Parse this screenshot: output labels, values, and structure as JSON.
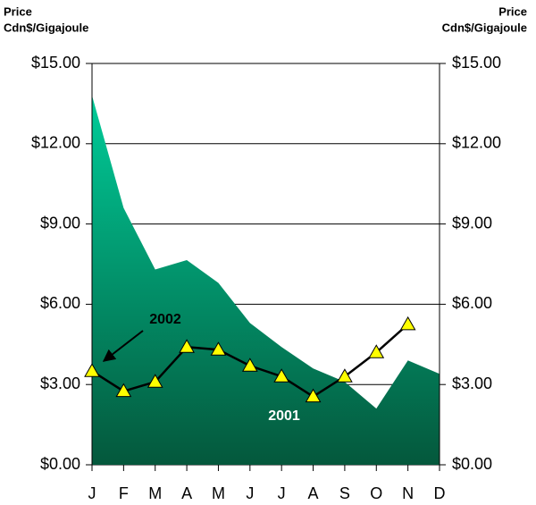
{
  "chart_data": {
    "type": "area_line",
    "ylabel": [
      "Price",
      "Cdn$/Gigajoule"
    ],
    "y2label": [
      "Price",
      "Cdn$/Gigajoule"
    ],
    "categories": [
      "J",
      "F",
      "M",
      "A",
      "M",
      "J",
      "J",
      "A",
      "S",
      "O",
      "N",
      "D"
    ],
    "series": [
      {
        "name": "2001",
        "type": "area",
        "color": "#00a878",
        "values": [
          13.8,
          9.6,
          7.3,
          7.65,
          6.8,
          5.3,
          4.4,
          3.6,
          3.1,
          2.1,
          3.9,
          3.4
        ]
      },
      {
        "name": "2002",
        "type": "line",
        "color": "#000000",
        "marker_color": "#ffff00",
        "axis": "y2",
        "values": [
          3.5,
          2.75,
          3.1,
          4.4,
          4.3,
          3.7,
          3.3,
          2.55,
          3.3,
          4.2,
          5.25,
          null
        ]
      }
    ],
    "ylim": [
      0,
      15
    ],
    "yticks": [
      {
        "value": 0,
        "label": "$0.00"
      },
      {
        "value": 3,
        "label": "$3.00"
      },
      {
        "value": 6,
        "label": "$6.00"
      },
      {
        "value": 9,
        "label": "$9.00"
      },
      {
        "value": 12,
        "label": "$12.00"
      },
      {
        "value": 15,
        "label": "$15.00"
      }
    ],
    "y2lim": [
      0,
      15
    ],
    "y2ticks": [
      {
        "value": 0,
        "label": "$0.00"
      },
      {
        "value": 3,
        "label": "$3.00"
      },
      {
        "value": 6,
        "label": "$6.00"
      },
      {
        "value": 9,
        "label": "$9.00"
      },
      {
        "value": 12,
        "label": "$12.00"
      },
      {
        "value": 15,
        "label": "$15.00"
      }
    ],
    "grid": true
  }
}
